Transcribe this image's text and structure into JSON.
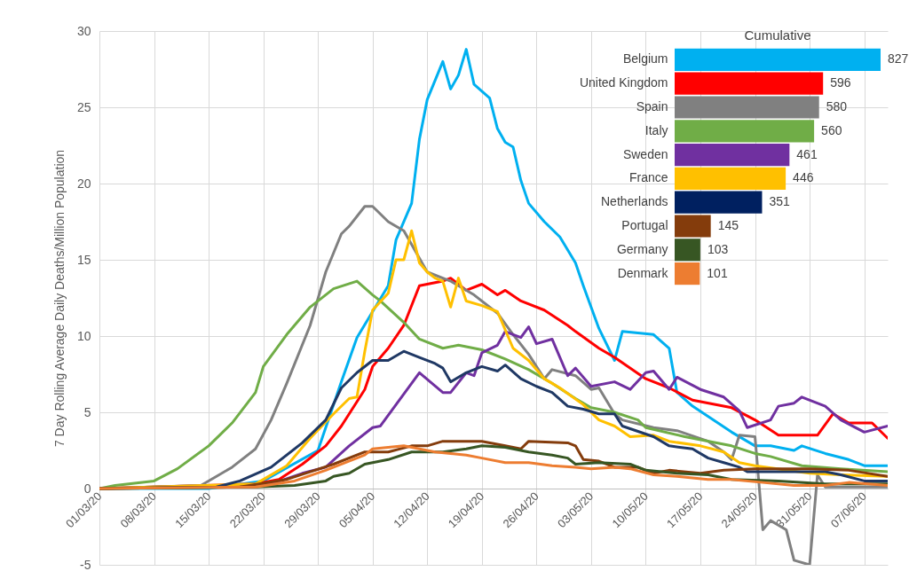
{
  "chart_data": [
    {
      "type": "line",
      "ylabel": "7 Day Rolling Average Daily Deaths/Million Population",
      "xlim": [
        "--03-01",
        "--06-10"
      ],
      "ylim": [
        -5,
        30
      ],
      "yticks": [
        -5,
        0,
        5,
        10,
        15,
        20,
        25,
        30
      ],
      "grid": true,
      "xticks": [
        {
          "value": "--03-01",
          "label": "01/03/20"
        },
        {
          "value": "--03-08",
          "label": "08/03/20"
        },
        {
          "value": "--03-15",
          "label": "15/03/20"
        },
        {
          "value": "--03-22",
          "label": "22/03/20"
        },
        {
          "value": "--03-29",
          "label": "29/03/20"
        },
        {
          "value": "--04-05",
          "label": "05/04/20"
        },
        {
          "value": "--04-12",
          "label": "12/04/20"
        },
        {
          "value": "--04-19",
          "label": "19/04/20"
        },
        {
          "value": "--04-26",
          "label": "26/04/20"
        },
        {
          "value": "--05-03",
          "label": "03/05/20"
        },
        {
          "value": "--05-10",
          "label": "10/05/20"
        },
        {
          "value": "--05-17",
          "label": "17/05/20"
        },
        {
          "value": "--05-24",
          "label": "24/05/20"
        },
        {
          "value": "--05-31",
          "label": "31/05/20"
        },
        {
          "value": "--06-07",
          "label": "07/06/20"
        }
      ],
      "series": [
        {
          "color": "#00b0f0",
          "x": [
            "--03-01",
            "--03-15",
            "--03-22",
            "--03-29",
            "--04-01",
            "--04-03",
            "--04-07",
            "--04-08",
            "--04-10",
            "--04-11",
            "--04-12",
            "--04-14",
            "--04-15",
            "--04-16",
            "--04-17",
            "--04-18",
            "--04-20",
            "--04-21",
            "--04-22",
            "--04-23",
            "--04-24",
            "--04-25",
            "--04-27",
            "--04-29",
            "--05-01",
            "--05-02",
            "--05-04",
            "--05-06",
            "--05-07",
            "--05-11",
            "--05-13",
            "--05-14",
            "--05-16",
            "--05-21",
            "--05-24",
            "--05-26",
            "--05-29",
            "--05-30",
            "--06-02",
            "--06-05",
            "--06-07",
            "--06-10"
          ],
          "values": [
            0,
            0,
            0.5,
            2.5,
            7.0,
            9.9,
            13.3,
            16.3,
            18.7,
            22.9,
            25.5,
            28.0,
            26.2,
            27.1,
            28.8,
            26.5,
            25.6,
            23.6,
            22.7,
            22.4,
            20.2,
            18.7,
            17.5,
            16.5,
            14.8,
            13.3,
            10.5,
            8.4,
            10.3,
            10.1,
            9.2,
            6.3,
            5.4,
            3.7,
            2.8,
            2.8,
            2.5,
            2.8,
            2.3,
            1.9,
            1.5,
            1.5
          ]
        },
        {
          "color": "#ff0000",
          "x": [
            "--03-01",
            "--03-21",
            "--03-24",
            "--03-27",
            "--03-30",
            "--04-01",
            "--04-04",
            "--04-05",
            "--04-07",
            "--04-09",
            "--04-11",
            "--04-14",
            "--04-15",
            "--04-17",
            "--04-19",
            "--04-21",
            "--04-22",
            "--04-24",
            "--04-27",
            "--04-30",
            "--05-01",
            "--05-04",
            "--05-06",
            "--05-10",
            "--05-13",
            "--05-16",
            "--05-21",
            "--05-24",
            "--05-27",
            "--06-01",
            "--06-03",
            "--06-05",
            "--06-08",
            "--06-10"
          ],
          "values": [
            0,
            0.3,
            0.6,
            1.6,
            2.8,
            4.1,
            6.5,
            8.0,
            9.2,
            10.7,
            13.3,
            13.6,
            13.8,
            13.0,
            13.4,
            12.7,
            13.0,
            12.3,
            11.7,
            10.7,
            10.3,
            9.2,
            8.6,
            7.2,
            6.6,
            5.8,
            5.3,
            4.5,
            3.5,
            3.5,
            4.9,
            4.3,
            4.3,
            3.3
          ]
        },
        {
          "color": "#808080",
          "x": [
            "--03-01",
            "--03-14",
            "--03-16",
            "--03-18",
            "--03-21",
            "--03-23",
            "--03-25",
            "--03-28",
            "--03-30",
            "--04-01",
            "--04-02",
            "--04-04",
            "--04-05",
            "--04-07",
            "--04-09",
            "--04-12",
            "--04-15",
            "--04-16",
            "--04-18",
            "--04-21",
            "--04-23",
            "--04-25",
            "--04-27",
            "--04-28",
            "--05-01",
            "--05-03",
            "--05-04",
            "--05-06",
            "--05-07",
            "--05-11",
            "--05-14",
            "--05-18",
            "--05-20",
            "--05-21",
            "--05-22",
            "--05-24",
            "--05-25",
            "--05-26",
            "--05-28",
            "--05-29",
            "--05-31",
            "--06-01",
            "--06-02",
            "--06-10"
          ],
          "values": [
            0,
            0.2,
            0.8,
            1.4,
            2.6,
            4.5,
            6.9,
            10.7,
            14.2,
            16.7,
            17.2,
            18.5,
            18.5,
            17.5,
            16.9,
            14.2,
            13.6,
            13.3,
            12.7,
            11.5,
            10.1,
            8.8,
            7.2,
            7.8,
            7.4,
            6.5,
            6.6,
            4.9,
            4.5,
            4.0,
            3.8,
            3.1,
            2.4,
            1.9,
            3.5,
            3.4,
            -2.7,
            -2.1,
            -2.7,
            -4.7,
            -5.0,
            0.9,
            0.1,
            0.1
          ]
        },
        {
          "color": "#70ad47",
          "x": [
            "--03-01",
            "--03-03",
            "--03-08",
            "--03-11",
            "--03-15",
            "--03-18",
            "--03-21",
            "--03-22",
            "--03-25",
            "--03-28",
            "--03-31",
            "--04-03",
            "--04-05",
            "--04-06",
            "--04-09",
            "--04-11",
            "--04-14",
            "--04-16",
            "--04-19",
            "--04-22",
            "--04-25",
            "--04-28",
            "--05-01",
            "--05-03",
            "--05-06",
            "--05-09",
            "--05-10",
            "--05-15",
            "--05-21",
            "--05-24",
            "--05-26",
            "--05-30",
            "--06-04",
            "--06-10"
          ],
          "values": [
            0,
            0.2,
            0.5,
            1.3,
            2.8,
            4.3,
            6.3,
            8.0,
            10.1,
            11.9,
            13.1,
            13.6,
            12.7,
            12.3,
            10.9,
            9.8,
            9.2,
            9.4,
            9.1,
            8.5,
            7.8,
            6.9,
            5.9,
            5.3,
            5.0,
            4.5,
            4.0,
            3.4,
            2.8,
            2.3,
            2.1,
            1.5,
            1.3,
            1.1
          ]
        },
        {
          "color": "#7030a0",
          "x": [
            "--03-01",
            "--03-23",
            "--03-27",
            "--03-30",
            "--04-02",
            "--04-05",
            "--04-06",
            "--04-08",
            "--04-11",
            "--04-14",
            "--04-15",
            "--04-17",
            "--04-18",
            "--04-19",
            "--04-21",
            "--04-22",
            "--04-23",
            "--04-24",
            "--04-25",
            "--04-26",
            "--04-28",
            "--04-30",
            "--05-01",
            "--05-03",
            "--05-06",
            "--05-08",
            "--05-10",
            "--05-11",
            "--05-13",
            "--05-14",
            "--05-17",
            "--05-20",
            "--05-22",
            "--05-23",
            "--05-26",
            "--05-27",
            "--05-29",
            "--05-30",
            "--06-02",
            "--06-04",
            "--06-07",
            "--06-10"
          ],
          "values": [
            0,
            0.3,
            1.0,
            1.4,
            2.8,
            4.0,
            4.1,
            5.5,
            7.6,
            6.3,
            6.3,
            7.6,
            7.4,
            8.9,
            9.4,
            10.3,
            10.1,
            9.9,
            10.6,
            9.5,
            9.8,
            7.4,
            7.9,
            6.7,
            7.0,
            6.5,
            7.6,
            7.7,
            6.5,
            7.3,
            6.5,
            6.0,
            5.1,
            4.0,
            4.5,
            5.4,
            5.6,
            6.0,
            5.4,
            4.5,
            3.7,
            4.1
          ]
        },
        {
          "color": "#ffc000",
          "x": [
            "--03-01",
            "--03-21",
            "--03-25",
            "--03-28",
            "--03-31",
            "--04-02",
            "--04-03",
            "--04-04",
            "--04-05",
            "--04-07",
            "--04-08",
            "--04-09",
            "--04-10",
            "--04-11",
            "--04-12",
            "--04-13",
            "--04-14",
            "--04-15",
            "--04-16",
            "--04-17",
            "--04-19",
            "--04-21",
            "--04-23",
            "--04-25",
            "--04-27",
            "--04-29",
            "--05-02",
            "--05-04",
            "--05-06",
            "--05-08",
            "--05-11",
            "--05-13",
            "--05-17",
            "--05-20",
            "--05-22",
            "--05-24",
            "--05-31",
            "--06-04",
            "--06-10"
          ],
          "values": [
            0,
            0.3,
            1.5,
            3.3,
            4.9,
            5.9,
            6.0,
            9.0,
            11.7,
            12.8,
            15.0,
            15.0,
            16.9,
            14.8,
            14.2,
            13.8,
            13.6,
            11.9,
            13.8,
            12.3,
            12.0,
            11.6,
            9.2,
            8.4,
            7.2,
            6.6,
            5.5,
            4.5,
            4.1,
            3.4,
            3.5,
            3.1,
            2.8,
            2.4,
            1.7,
            1.5,
            1.0,
            0.9,
            0.8
          ]
        },
        {
          "color": "#1f3864",
          "x": [
            "--03-01",
            "--03-16",
            "--03-19",
            "--03-23",
            "--03-27",
            "--03-30",
            "--04-01",
            "--04-03",
            "--04-05",
            "--04-07",
            "--04-09",
            "--04-11",
            "--04-13",
            "--04-14",
            "--04-15",
            "--04-17",
            "--04-19",
            "--04-21",
            "--04-22",
            "--04-24",
            "--04-26",
            "--04-28",
            "--04-30",
            "--05-02",
            "--05-04",
            "--05-06",
            "--05-07",
            "--05-11",
            "--05-13",
            "--05-16",
            "--05-18",
            "--05-20",
            "--05-22",
            "--05-23",
            "--06-02",
            "--06-04",
            "--06-07",
            "--06-10"
          ],
          "values": [
            0,
            0.1,
            0.5,
            1.4,
            3.0,
            4.5,
            6.6,
            7.6,
            8.4,
            8.4,
            9.0,
            8.6,
            8.2,
            7.9,
            7.0,
            7.6,
            8.0,
            7.7,
            8.1,
            7.2,
            6.7,
            6.3,
            5.4,
            5.2,
            4.9,
            4.9,
            4.1,
            3.4,
            2.8,
            2.6,
            2.0,
            1.7,
            1.4,
            1.1,
            1.1,
            0.9,
            0.5,
            0.5
          ]
        },
        {
          "color": "#843c0c",
          "x": [
            "--03-01",
            "--03-19",
            "--03-25",
            "--03-28",
            "--03-31",
            "--04-04",
            "--04-07",
            "--04-10",
            "--04-12",
            "--04-14",
            "--04-17",
            "--04-19",
            "--04-22",
            "--04-24",
            "--04-25",
            "--04-30",
            "--05-01",
            "--05-02",
            "--05-04",
            "--05-06",
            "--05-09",
            "--05-11",
            "--05-13",
            "--05-17",
            "--05-20",
            "--05-24",
            "--05-31",
            "--06-05",
            "--06-10"
          ],
          "values": [
            0,
            0.1,
            0.6,
            1.1,
            1.6,
            2.4,
            2.4,
            2.8,
            2.8,
            3.1,
            3.1,
            3.1,
            2.8,
            2.6,
            3.1,
            3.0,
            2.8,
            1.9,
            1.8,
            1.4,
            1.4,
            1.0,
            1.2,
            1.0,
            1.2,
            1.3,
            1.3,
            1.2,
            0.8
          ]
        },
        {
          "color": "#375623",
          "x": [
            "--03-01",
            "--03-21",
            "--03-26",
            "--03-30",
            "--03-31",
            "--04-02",
            "--04-04",
            "--04-07",
            "--04-10",
            "--04-14",
            "--04-17",
            "--04-19",
            "--04-22",
            "--04-25",
            "--04-28",
            "--04-30",
            "--05-01",
            "--05-04",
            "--05-08",
            "--05-10",
            "--05-14",
            "--05-18",
            "--05-21",
            "--05-27",
            "--06-02",
            "--06-10"
          ],
          "values": [
            0,
            0.1,
            0.2,
            0.5,
            0.8,
            1.0,
            1.6,
            1.9,
            2.4,
            2.4,
            2.6,
            2.8,
            2.7,
            2.4,
            2.2,
            2.0,
            1.6,
            1.7,
            1.6,
            1.2,
            1.0,
            0.9,
            0.6,
            0.5,
            0.3,
            0.3
          ]
        },
        {
          "color": "#ed7d31",
          "x": [
            "--03-01",
            "--03-21",
            "--03-26",
            "--03-30",
            "--04-04",
            "--04-05",
            "--04-09",
            "--04-13",
            "--04-17",
            "--04-19",
            "--04-22",
            "--04-25",
            "--04-28",
            "--05-01",
            "--05-03",
            "--05-06",
            "--05-08",
            "--05-11",
            "--05-14",
            "--05-18",
            "--05-21",
            "--05-25",
            "--05-29",
            "--06-02",
            "--06-05",
            "--06-10"
          ],
          "values": [
            0,
            0.1,
            0.5,
            1.2,
            2.2,
            2.6,
            2.8,
            2.4,
            2.2,
            2.0,
            1.7,
            1.7,
            1.5,
            1.4,
            1.3,
            1.4,
            1.3,
            0.9,
            0.8,
            0.6,
            0.6,
            0.4,
            0.2,
            0.2,
            0.4,
            0.2
          ]
        }
      ]
    },
    {
      "type": "bar",
      "orientation": "horizontal",
      "title": "Cumulative",
      "data_labels": true,
      "categories": [
        "Belgium",
        "United Kingdom",
        "Spain",
        "Italy",
        "Sweden",
        "France",
        "Netherlands",
        "Portugal",
        "Germany",
        "Denmark"
      ],
      "values": [
        827,
        596,
        580,
        560,
        461,
        446,
        351,
        145,
        103,
        101
      ],
      "colors": [
        "#00b0f0",
        "#ff0000",
        "#808080",
        "#70ad47",
        "#7030a0",
        "#ffc000",
        "#002060",
        "#843c0c",
        "#375623",
        "#ed7d31"
      ]
    }
  ]
}
